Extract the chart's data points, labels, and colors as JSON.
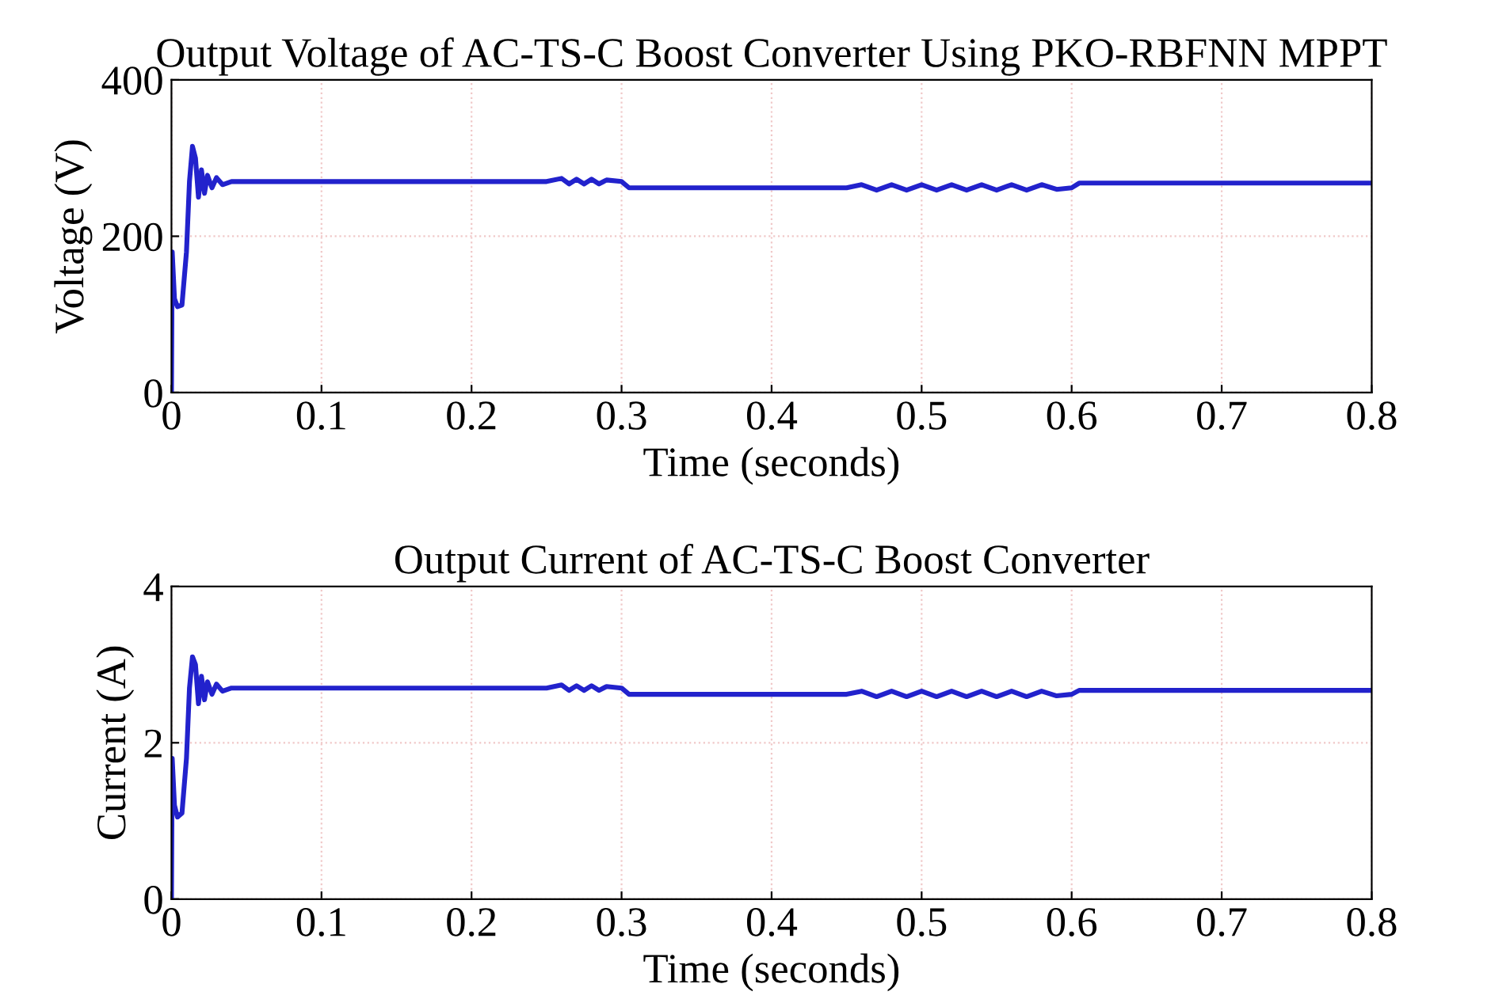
{
  "chart_data": [
    {
      "type": "line",
      "title": "Output Voltage of AC-TS-C Boost Converter Using PKO-RBFNN MPPT",
      "xlabel": "Time (seconds)",
      "ylabel": "Voltage (V)",
      "xlim": [
        0,
        0.8
      ],
      "ylim": [
        0,
        400
      ],
      "xticks": [
        0,
        0.1,
        0.2,
        0.3,
        0.4,
        0.5,
        0.6,
        0.7,
        0.8
      ],
      "yticks": [
        0,
        200,
        400
      ],
      "grid": true,
      "series": [
        {
          "color": "#2222cc",
          "x": [
            0,
            0.0005,
            0.002,
            0.004,
            0.007,
            0.01,
            0.012,
            0.014,
            0.016,
            0.018,
            0.02,
            0.022,
            0.024,
            0.027,
            0.03,
            0.034,
            0.04,
            0.1,
            0.25,
            0.26,
            0.265,
            0.27,
            0.275,
            0.28,
            0.285,
            0.29,
            0.3,
            0.305,
            0.45,
            0.46,
            0.47,
            0.48,
            0.49,
            0.5,
            0.51,
            0.52,
            0.53,
            0.54,
            0.55,
            0.56,
            0.57,
            0.58,
            0.59,
            0.6,
            0.605,
            0.8
          ],
          "values": [
            0,
            180,
            120,
            110,
            112,
            180,
            270,
            315,
            300,
            250,
            285,
            255,
            278,
            262,
            275,
            266,
            270,
            270,
            270,
            274,
            267,
            273,
            267,
            273,
            267,
            272,
            270,
            262,
            262,
            266,
            259,
            266,
            259,
            266,
            259,
            266,
            259,
            266,
            259,
            266,
            259,
            266,
            260,
            262,
            268,
            268
          ]
        }
      ]
    },
    {
      "type": "line",
      "title": "Output Current of AC-TS-C Boost Converter",
      "xlabel": "Time (seconds)",
      "ylabel": "Current (A)",
      "xlim": [
        0,
        0.8
      ],
      "ylim": [
        0,
        4
      ],
      "xticks": [
        0,
        0.1,
        0.2,
        0.3,
        0.4,
        0.5,
        0.6,
        0.7,
        0.8
      ],
      "yticks": [
        0,
        2,
        4
      ],
      "grid": true,
      "series": [
        {
          "color": "#2222cc",
          "x": [
            0,
            0.0005,
            0.002,
            0.004,
            0.007,
            0.01,
            0.012,
            0.014,
            0.016,
            0.018,
            0.02,
            0.022,
            0.024,
            0.027,
            0.03,
            0.034,
            0.04,
            0.1,
            0.25,
            0.26,
            0.265,
            0.27,
            0.275,
            0.28,
            0.285,
            0.29,
            0.3,
            0.305,
            0.45,
            0.46,
            0.47,
            0.48,
            0.49,
            0.5,
            0.51,
            0.52,
            0.53,
            0.54,
            0.55,
            0.56,
            0.57,
            0.58,
            0.59,
            0.6,
            0.605,
            0.8
          ],
          "values": [
            0,
            1.8,
            1.2,
            1.05,
            1.1,
            1.8,
            2.7,
            3.1,
            3.0,
            2.5,
            2.85,
            2.55,
            2.78,
            2.62,
            2.75,
            2.66,
            2.7,
            2.7,
            2.7,
            2.74,
            2.67,
            2.73,
            2.67,
            2.73,
            2.67,
            2.72,
            2.7,
            2.62,
            2.62,
            2.66,
            2.59,
            2.66,
            2.59,
            2.66,
            2.59,
            2.66,
            2.59,
            2.66,
            2.59,
            2.66,
            2.59,
            2.66,
            2.6,
            2.62,
            2.67,
            2.67
          ]
        }
      ]
    }
  ]
}
